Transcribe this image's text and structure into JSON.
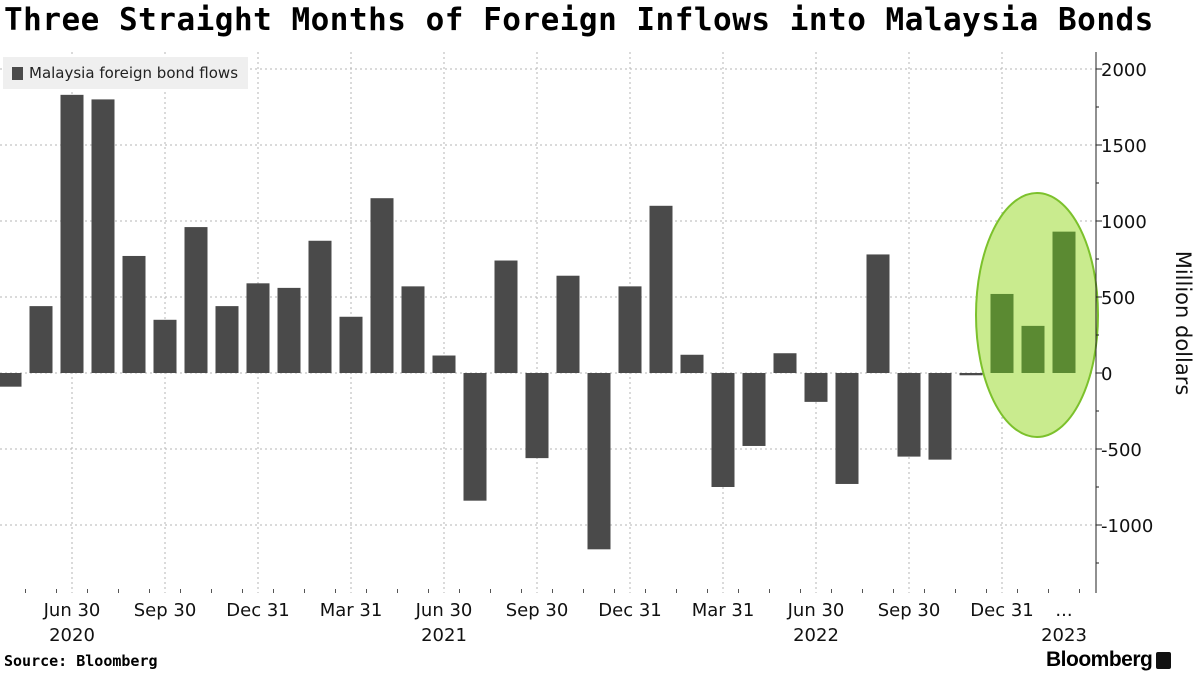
{
  "title": "Three Straight Months of Foreign Inflows into Malaysia Bonds",
  "source": "Source: Bloomberg",
  "logo": "Bloomberg",
  "colors": {
    "bar": "#4a4a4a",
    "highlight_bar": "#5b8a32",
    "highlight_fill": "#c9eb8e",
    "highlight_stroke": "#7cc12c",
    "grid": "#b5b5b5"
  },
  "chart_data": {
    "type": "bar",
    "title": "Three Straight Months of Foreign Inflows into Malaysia Bonds",
    "ylabel": "Million dollars",
    "ylim": [
      -1450,
      2100
    ],
    "yticks": [
      -1000,
      -500,
      0,
      500,
      1000,
      1500,
      2000
    ],
    "ytick_labels": [
      "-1000",
      "-500",
      "0",
      "500",
      "1000",
      "1500",
      "2000"
    ],
    "grid": true,
    "legend": {
      "position": "top-left",
      "entries": [
        "Malaysia foreign bond flows"
      ]
    },
    "series": [
      {
        "name": "Malaysia foreign bond flows",
        "categories": [
          "2020-04",
          "2020-05",
          "2020-06",
          "2020-07",
          "2020-08",
          "2020-09",
          "2020-10",
          "2020-11",
          "2020-12",
          "2021-01",
          "2021-02",
          "2021-03",
          "2021-04",
          "2021-05",
          "2021-06",
          "2021-07",
          "2021-08",
          "2021-09",
          "2021-10",
          "2021-11",
          "2021-12",
          "2022-01",
          "2022-02",
          "2022-03",
          "2022-04",
          "2022-05",
          "2022-06",
          "2022-07",
          "2022-08",
          "2022-09",
          "2022-10",
          "2022-11",
          "2022-12",
          "2023-01",
          "2023-02",
          "2023-03"
        ],
        "values": [
          -90,
          440,
          1830,
          1800,
          770,
          350,
          960,
          440,
          590,
          560,
          870,
          370,
          1150,
          570,
          115,
          -840,
          740,
          -560,
          640,
          -1160,
          570,
          1100,
          120,
          -750,
          -480,
          130,
          -190,
          -730,
          780,
          -550,
          -570,
          -15,
          520,
          310,
          930,
          null
        ],
        "highlight": [
          false,
          false,
          false,
          false,
          false,
          false,
          false,
          false,
          false,
          false,
          false,
          false,
          false,
          false,
          false,
          false,
          false,
          false,
          false,
          false,
          false,
          false,
          false,
          false,
          false,
          false,
          false,
          false,
          false,
          false,
          false,
          false,
          true,
          true,
          true,
          false
        ]
      }
    ],
    "x_tick_labels": [
      "Jun 30",
      "Sep 30",
      "Dec 31",
      "Mar 31",
      "Jun 30",
      "Sep 30",
      "Dec 31",
      "Mar 31",
      "Jun 30",
      "Sep 30",
      "Dec 31",
      "..."
    ],
    "x_tick_months": [
      2,
      5,
      8,
      11,
      14,
      17,
      20,
      23,
      26,
      29,
      32,
      34
    ],
    "year_labels": [
      "2020",
      "2021",
      "2022",
      "2023"
    ],
    "year_label_months": [
      2,
      14,
      26,
      34
    ],
    "annotation": {
      "type": "ellipse",
      "covers_categories": [
        "2023-01",
        "2023-02",
        "2023-03"
      ]
    }
  }
}
